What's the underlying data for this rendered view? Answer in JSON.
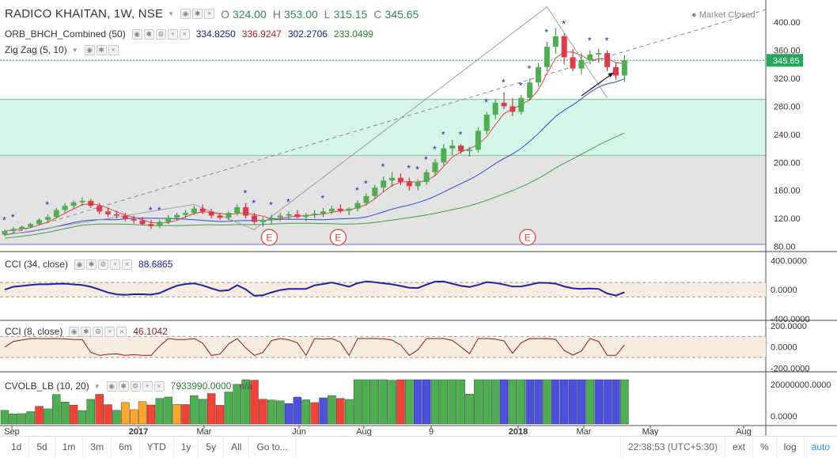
{
  "header": {
    "symbol": "RADICO KHAITAN, 1W, NSE",
    "o_label": "O",
    "o_value": "324.00",
    "h_label": "H",
    "h_value": "353.00",
    "l_label": "L",
    "l_value": "315.15",
    "c_label": "C",
    "c_value": "345.65",
    "market_status": "Market Closed"
  },
  "indicators": {
    "orb": {
      "label": "ORB_BHCH_Combined (50)",
      "values": [
        "334.8250",
        "336.9247",
        "302.2706",
        "233.0499"
      ],
      "colors": [
        "#1a237e",
        "#b71c1c",
        "#1a237e",
        "#2e7d32"
      ]
    },
    "zigzag": {
      "label": "Zig Zag (5, 10)"
    },
    "cci34": {
      "label": "CCI (34, close)",
      "value": "88.6865",
      "color": "#1e22aa"
    },
    "cci8": {
      "label": "CCI (8, close)",
      "value": "46.1042",
      "color": "#8b1a1a"
    },
    "cvol": {
      "label": "CVOLB_LB (10, 20)",
      "value": "7933990.0000",
      "extra": "n/a"
    }
  },
  "chart_data": [
    {
      "type": "candlestick",
      "timeframe": "1W",
      "y_ticks": [
        80,
        120,
        160,
        200,
        240,
        280,
        320,
        360,
        400
      ],
      "ylim": [
        75,
        425
      ],
      "last_price": "345.65",
      "zones": [
        {
          "from": 210,
          "to": 290,
          "color": "#d6f5e9"
        },
        {
          "from": 83,
          "to": 210,
          "color": "#e3e3e3"
        }
      ],
      "earnings_marker": "E",
      "earnings_idx": [
        30,
        38,
        60
      ],
      "candles": [
        [
          97,
          104,
          95,
          102
        ],
        [
          102,
          108,
          100,
          105
        ],
        [
          105,
          110,
          102,
          108
        ],
        [
          108,
          114,
          106,
          112
        ],
        [
          112,
          120,
          110,
          118
        ],
        [
          118,
          126,
          115,
          122
        ],
        [
          122,
          135,
          120,
          132
        ],
        [
          132,
          142,
          128,
          138
        ],
        [
          138,
          146,
          134,
          143
        ],
        [
          143,
          150,
          138,
          145
        ],
        [
          145,
          148,
          135,
          138
        ],
        [
          138,
          142,
          126,
          130
        ],
        [
          130,
          135,
          122,
          126
        ],
        [
          126,
          131,
          120,
          124
        ],
        [
          124,
          128,
          116,
          119
        ],
        [
          119,
          124,
          113,
          117
        ],
        [
          117,
          122,
          110,
          112
        ],
        [
          112,
          118,
          105,
          109
        ],
        [
          109,
          118,
          106,
          115
        ],
        [
          115,
          125,
          112,
          121
        ],
        [
          121,
          128,
          118,
          125
        ],
        [
          125,
          132,
          120,
          128
        ],
        [
          128,
          138,
          125,
          134
        ],
        [
          134,
          140,
          126,
          130
        ],
        [
          130,
          134,
          120,
          124
        ],
        [
          124,
          128,
          118,
          121
        ],
        [
          121,
          130,
          118,
          128
        ],
        [
          128,
          140,
          124,
          136
        ],
        [
          136,
          142,
          120,
          124
        ],
        [
          124,
          128,
          112,
          115
        ],
        [
          115,
          122,
          108,
          118
        ],
        [
          118,
          125,
          112,
          121
        ],
        [
          121,
          128,
          116,
          124
        ],
        [
          124,
          130,
          118,
          126
        ],
        [
          126,
          132,
          120,
          122
        ],
        [
          122,
          128,
          116,
          125
        ],
        [
          125,
          132,
          120,
          127
        ],
        [
          127,
          135,
          122,
          130
        ],
        [
          130,
          138,
          126,
          134
        ],
        [
          134,
          140,
          128,
          131
        ],
        [
          131,
          136,
          125,
          134
        ],
        [
          134,
          146,
          130,
          142
        ],
        [
          142,
          156,
          138,
          152
        ],
        [
          152,
          168,
          148,
          164
        ],
        [
          164,
          180,
          158,
          174
        ],
        [
          174,
          186,
          165,
          178
        ],
        [
          178,
          184,
          168,
          172
        ],
        [
          172,
          178,
          160,
          166
        ],
        [
          166,
          176,
          160,
          172
        ],
        [
          172,
          190,
          168,
          186
        ],
        [
          186,
          205,
          180,
          200
        ],
        [
          200,
          226,
          195,
          220
        ],
        [
          220,
          232,
          210,
          224
        ],
        [
          224,
          226,
          212,
          216
        ],
        [
          216,
          222,
          208,
          218
        ],
        [
          218,
          250,
          214,
          245
        ],
        [
          245,
          272,
          240,
          268
        ],
        [
          268,
          290,
          262,
          285
        ],
        [
          285,
          300,
          276,
          280
        ],
        [
          280,
          292,
          266,
          272
        ],
        [
          272,
          296,
          268,
          292
        ],
        [
          292,
          320,
          288,
          314
        ],
        [
          314,
          342,
          308,
          336
        ],
        [
          336,
          372,
          330,
          365
        ],
        [
          365,
          392,
          355,
          380
        ],
        [
          380,
          384,
          340,
          350
        ],
        [
          350,
          362,
          330,
          334
        ],
        [
          334,
          356,
          326,
          346
        ],
        [
          346,
          360,
          340,
          354
        ],
        [
          354,
          362,
          342,
          356
        ],
        [
          356,
          360,
          330,
          336
        ],
        [
          336,
          342,
          318,
          324
        ],
        [
          324,
          353,
          315,
          345.65
        ]
      ],
      "vol_colors": "g g g g r g g g r g g r r g o o o r g g o r g g r r g g g r r g g b b g r b g r g g g g g g r g b b g g g g g g g g b g g b b g b b b b g b b b g"
    }
  ],
  "x_labels": [
    {
      "text": "Sep",
      "x": 15
    },
    {
      "text": "2017",
      "x": 175
    },
    {
      "text": "Mar",
      "x": 258
    },
    {
      "text": "Jun",
      "x": 378
    },
    {
      "text": "Aug",
      "x": 460
    },
    {
      "text": "9",
      "x": 545
    },
    {
      "text": "2018",
      "x": 655
    },
    {
      "text": "Mar",
      "x": 738
    },
    {
      "text": "May",
      "x": 822
    },
    {
      "text": "Aug",
      "x": 940
    }
  ],
  "cci34_ticks": [
    "400.0000",
    "0.0000",
    "-400.0000"
  ],
  "cci8_ticks": [
    "200.0000",
    "0.0000",
    "-200.0000"
  ],
  "cvol_ticks": [
    "20000000.0000",
    "0.0000"
  ],
  "bottom": {
    "ranges": [
      "1d",
      "5d",
      "1m",
      "3m",
      "6m",
      "YTD",
      "1y",
      "5y",
      "All",
      "Go to..."
    ],
    "time": "22:38:53 (UTC+5:30)",
    "right": [
      "ext",
      "%",
      "log",
      "auto"
    ]
  }
}
